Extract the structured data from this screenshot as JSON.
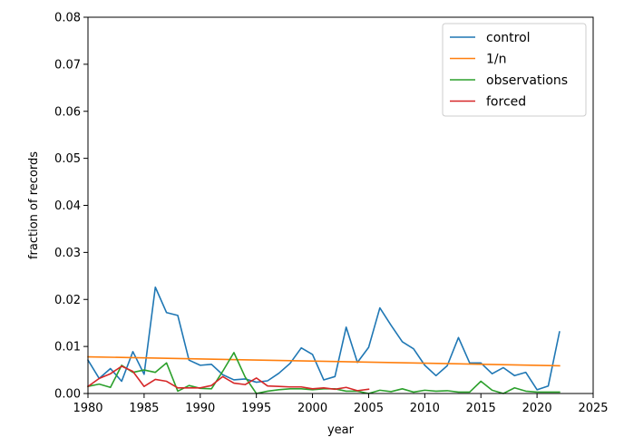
{
  "chart_data": {
    "type": "line",
    "title": "",
    "xlabel": "year",
    "ylabel": "fraction of records",
    "xlim": [
      1980,
      2025
    ],
    "ylim": [
      0,
      0.08
    ],
    "x_ticks": [
      1980,
      1985,
      1990,
      1995,
      2000,
      2005,
      2010,
      2015,
      2020,
      2025
    ],
    "y_ticks": [
      0.0,
      0.01,
      0.02,
      0.03,
      0.04,
      0.05,
      0.06,
      0.07,
      0.08
    ],
    "x_tick_labels": [
      "1980",
      "1985",
      "1990",
      "1995",
      "2000",
      "2005",
      "2010",
      "2015",
      "2020",
      "2025"
    ],
    "y_tick_labels": [
      "0.00",
      "0.01",
      "0.02",
      "0.03",
      "0.04",
      "0.05",
      "0.06",
      "0.07",
      "0.08"
    ],
    "grid": false,
    "legend_position": "top-right",
    "series": [
      {
        "name": "control",
        "color": "#1f77b4",
        "x": [
          1980,
          1981,
          1982,
          1983,
          1984,
          1985,
          1986,
          1987,
          1988,
          1989,
          1990,
          1991,
          1992,
          1993,
          1994,
          1995,
          1996,
          1997,
          1998,
          1999,
          2000,
          2001,
          2002,
          2003,
          2004,
          2005,
          2006,
          2007,
          2008,
          2009,
          2010,
          2011,
          2012,
          2013,
          2014,
          2015,
          2016,
          2017,
          2018,
          2019,
          2020,
          2021,
          2022
        ],
        "y": [
          0.0071,
          0.0032,
          0.0053,
          0.0026,
          0.0089,
          0.0041,
          0.0226,
          0.0172,
          0.0166,
          0.0071,
          0.006,
          0.0062,
          0.004,
          0.0029,
          0.0031,
          0.0024,
          0.0027,
          0.0043,
          0.0064,
          0.0097,
          0.0083,
          0.0029,
          0.0036,
          0.0141,
          0.0066,
          0.0098,
          0.0182,
          0.0145,
          0.011,
          0.0095,
          0.006,
          0.0038,
          0.0059,
          0.0119,
          0.0065,
          0.0065,
          0.0042,
          0.0055,
          0.0038,
          0.0045,
          0.0008,
          0.0016,
          0.0131
        ]
      },
      {
        "name": "1/n",
        "color": "#ff7f0e",
        "x": [
          1980,
          2022
        ],
        "y": [
          0.0078,
          0.0059
        ]
      },
      {
        "name": "observations",
        "color": "#2ca02c",
        "x": [
          1980,
          1981,
          1982,
          1983,
          1984,
          1985,
          1986,
          1987,
          1988,
          1989,
          1990,
          1991,
          1992,
          1993,
          1994,
          1995,
          1996,
          1997,
          1998,
          1999,
          2000,
          2001,
          2002,
          2003,
          2004,
          2005,
          2006,
          2007,
          2008,
          2009,
          2010,
          2011,
          2012,
          2013,
          2014,
          2015,
          2016,
          2017,
          2018,
          2019,
          2020,
          2021,
          2022
        ],
        "y": [
          0.0015,
          0.002,
          0.0013,
          0.006,
          0.0045,
          0.005,
          0.0045,
          0.0065,
          0.0005,
          0.0017,
          0.0011,
          0.001,
          0.0047,
          0.0087,
          0.0035,
          0.0,
          0.0005,
          0.0008,
          0.001,
          0.001,
          0.0008,
          0.001,
          0.001,
          0.0005,
          0.0005,
          0.0,
          0.0007,
          0.0004,
          0.001,
          0.0003,
          0.0007,
          0.0005,
          0.0006,
          0.0003,
          0.0003,
          0.0026,
          0.0007,
          0.0,
          0.0012,
          0.0005,
          0.0003,
          0.0003,
          0.0003
        ]
      },
      {
        "name": "forced",
        "color": "#d62728",
        "x": [
          1980,
          1981,
          1982,
          1983,
          1984,
          1985,
          1986,
          1987,
          1988,
          1989,
          1990,
          1991,
          1992,
          1993,
          1994,
          1995,
          1996,
          1997,
          1998,
          1999,
          2000,
          2001,
          2002,
          2003,
          2004,
          2005
        ],
        "y": [
          0.0015,
          0.0032,
          0.0042,
          0.0058,
          0.0047,
          0.0015,
          0.003,
          0.0026,
          0.0012,
          0.0012,
          0.0012,
          0.0017,
          0.0036,
          0.0022,
          0.0019,
          0.0033,
          0.0016,
          0.0015,
          0.0014,
          0.0014,
          0.001,
          0.0012,
          0.0009,
          0.0013,
          0.0006,
          0.0009
        ]
      }
    ]
  }
}
